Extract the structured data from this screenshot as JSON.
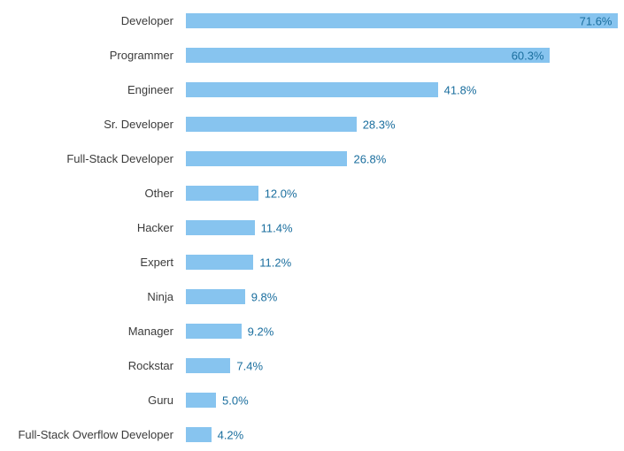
{
  "chart_data": {
    "type": "bar",
    "orientation": "horizontal",
    "title": "",
    "xlabel": "",
    "ylabel": "",
    "unit": "%",
    "xlim": [
      0,
      72.7
    ],
    "grid": false,
    "legend": "none",
    "categories": [
      "Developer",
      "Programmer",
      "Engineer",
      "Sr. Developer",
      "Full-Stack Developer",
      "Other",
      "Hacker",
      "Expert",
      "Ninja",
      "Manager",
      "Rockstar",
      "Guru",
      "Full-Stack Overflow Developer"
    ],
    "values": [
      71.6,
      60.3,
      41.8,
      28.3,
      26.8,
      12.0,
      11.4,
      11.2,
      9.8,
      9.2,
      7.4,
      5.0,
      4.2
    ],
    "value_labels": [
      "71.6%",
      "60.3%",
      "41.8%",
      "28.3%",
      "26.8%",
      "12.0%",
      "11.4%",
      "11.2%",
      "9.8%",
      "9.2%",
      "7.4%",
      "5.0%",
      "4.2%"
    ],
    "colors": {
      "bar": "#87c4ef",
      "value_label": "#1a6e9e",
      "category_label": "#3b3b3b",
      "background": "#ffffff"
    }
  }
}
